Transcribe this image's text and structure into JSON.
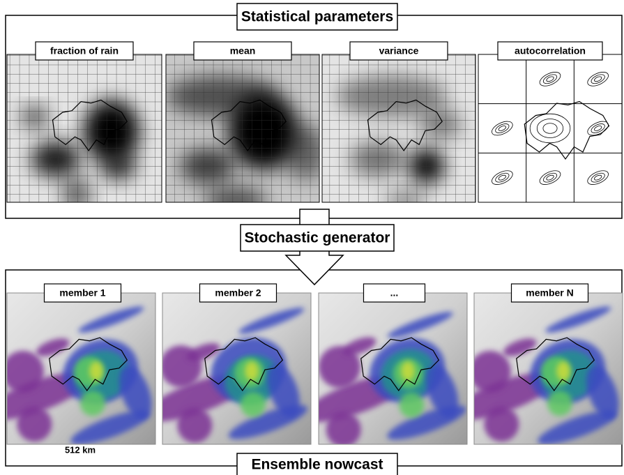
{
  "header": {
    "title": "Statistical parameters"
  },
  "parameters": [
    {
      "label": "fraction of rain"
    },
    {
      "label": "mean"
    },
    {
      "label": "variance"
    },
    {
      "label": "autocorrelation"
    }
  ],
  "generator": {
    "label": "Stochastic generator"
  },
  "members": [
    {
      "label": "member 1"
    },
    {
      "label": "member 2"
    },
    {
      "label": "..."
    },
    {
      "label": "member N"
    }
  ],
  "scale_label": "512 km",
  "footer": {
    "title": "Ensemble nowcast"
  }
}
